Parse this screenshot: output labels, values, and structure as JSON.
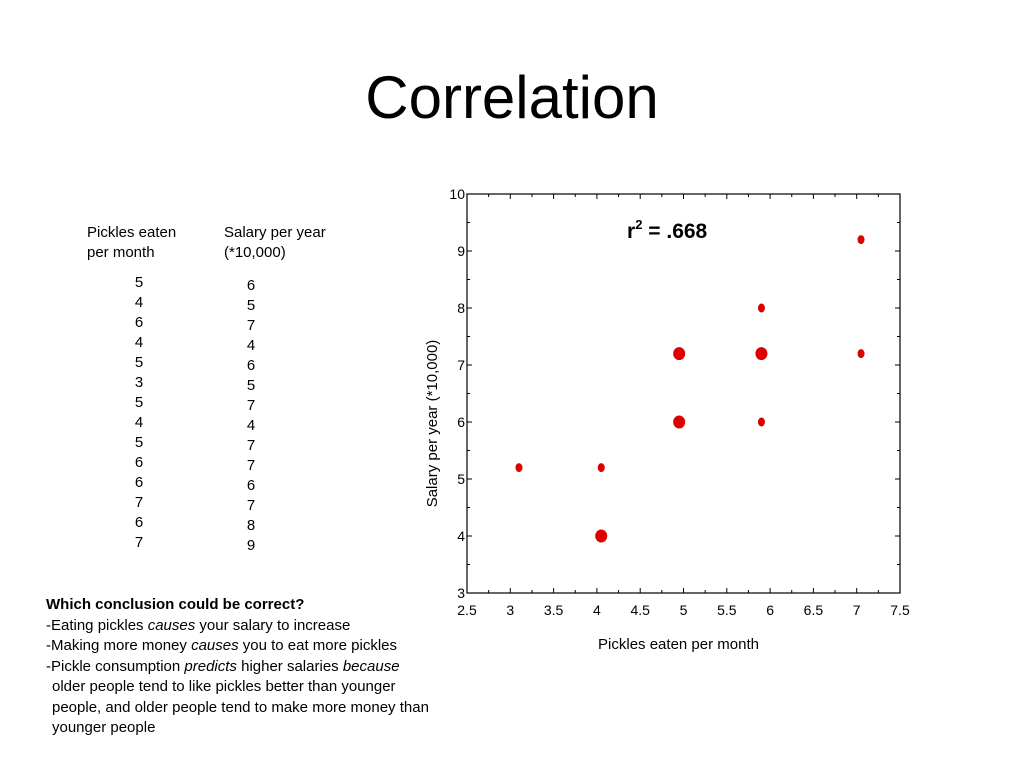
{
  "slide": {
    "title": "Correlation"
  },
  "table": {
    "col1": {
      "header_line1": "Pickles eaten",
      "header_line2": "per month",
      "values": [
        "5",
        "4",
        "6",
        "4",
        "5",
        "3",
        "5",
        "4",
        "5",
        "6",
        "6",
        "7",
        "6",
        "7"
      ]
    },
    "col2": {
      "header_line1": "Salary per year",
      "header_line2": "(*10,000)",
      "values": [
        "6",
        "5",
        "7",
        "4",
        "6",
        "5",
        "7",
        "4",
        "7",
        "7",
        "6",
        "7",
        "8",
        "9"
      ]
    }
  },
  "question": {
    "title": "Which conclusion could be correct?",
    "line1": {
      "a": "-Eating pickles ",
      "b": "causes",
      "c": " your salary to increase"
    },
    "line2": {
      "a": "-Making more money ",
      "b": "causes",
      "c": " you to eat more pickles"
    },
    "line3": {
      "a": "-Pickle consumption ",
      "b": "predicts",
      "c": " higher salaries ",
      "d": "because"
    },
    "line4": "older people tend to like pickles better than younger",
    "line5": "people, and older people tend to make more money than",
    "line6": "younger people"
  },
  "chart_data": {
    "type": "scatter",
    "xlabel": "Pickles eaten per month",
    "ylabel": "Salary per year  (*10,000)",
    "xlim": [
      2.5,
      7.5
    ],
    "ylim": [
      3,
      10
    ],
    "x_ticks": [
      "2.5",
      "3",
      "3.5",
      "4",
      "4.5",
      "5",
      "5.5",
      "6",
      "6.5",
      "7",
      "7.5"
    ],
    "y_ticks": [
      "3",
      "4",
      "5",
      "6",
      "7",
      "8",
      "9",
      "10"
    ],
    "grid": false,
    "annotation": {
      "r": "r",
      "sup": "2",
      "rest": " = .668"
    },
    "marker_color": "#dd0000",
    "points": [
      {
        "x": 3.1,
        "y": 5.2,
        "count": 1
      },
      {
        "x": 4.05,
        "y": 5.2,
        "count": 1
      },
      {
        "x": 4.05,
        "y": 4.0,
        "count": 2
      },
      {
        "x": 4.95,
        "y": 7.2,
        "count": 2
      },
      {
        "x": 4.95,
        "y": 6.0,
        "count": 2
      },
      {
        "x": 5.9,
        "y": 8.0,
        "count": 1
      },
      {
        "x": 5.9,
        "y": 7.2,
        "count": 2
      },
      {
        "x": 5.9,
        "y": 6.0,
        "count": 1
      },
      {
        "x": 7.05,
        "y": 9.2,
        "count": 1
      },
      {
        "x": 7.05,
        "y": 7.2,
        "count": 1
      }
    ]
  }
}
